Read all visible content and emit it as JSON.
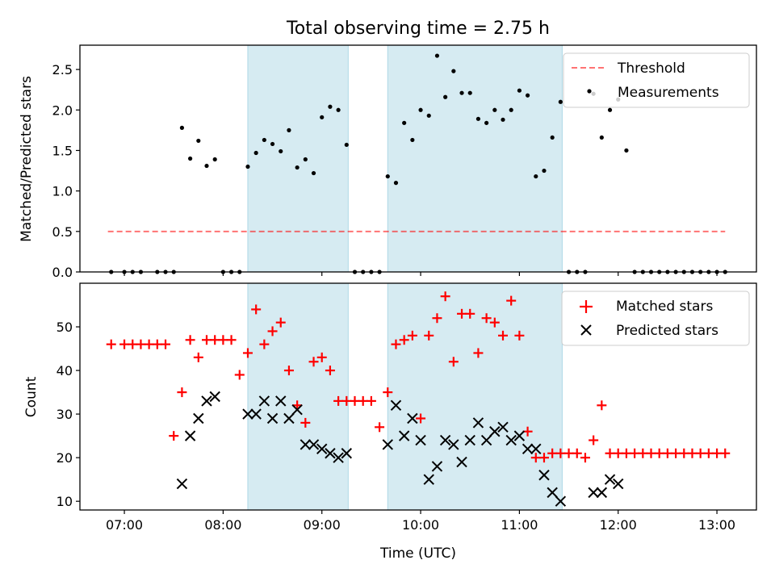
{
  "figure_title": "Total observing time = 2.75 h",
  "xlabel": "Time (UTC)",
  "x_ticks": [
    {
      "t": 7.0,
      "label": "07:00"
    },
    {
      "t": 8.0,
      "label": "08:00"
    },
    {
      "t": 9.0,
      "label": "09:00"
    },
    {
      "t": 10.0,
      "label": "10:00"
    },
    {
      "t": 11.0,
      "label": "11:00"
    },
    {
      "t": 12.0,
      "label": "12:00"
    },
    {
      "t": 13.0,
      "label": "13:00"
    }
  ],
  "shaded_intervals": [
    [
      "08:15",
      "09:16"
    ],
    [
      "09:40",
      "11:26"
    ]
  ],
  "colors": {
    "shade": "#add8e6",
    "threshold": "#ff0000",
    "measurements": "#000000",
    "matched": "#ff0000",
    "predicted": "#000000"
  },
  "chart_data": [
    {
      "type": "scatter",
      "ylabel": "Matched/Predicted stars",
      "ylim": [
        0,
        2.8
      ],
      "xlim": [
        "06:33",
        "13:24"
      ],
      "y_ticks": [
        "0.0",
        "0.5",
        "1.0",
        "1.5",
        "2.0",
        "2.5"
      ],
      "legend": {
        "placement": "top-right",
        "entries": [
          "Threshold",
          "Measurements"
        ]
      },
      "threshold": {
        "name": "Threshold",
        "y": 0.5,
        "x_range": [
          "06:50",
          "13:05"
        ],
        "style": "dashed"
      },
      "series": [
        {
          "name": "Measurements",
          "x": [
            "06:52",
            "07:00",
            "07:05",
            "07:10",
            "07:20",
            "07:25",
            "07:30",
            "07:35",
            "07:40",
            "07:45",
            "07:50",
            "07:55",
            "08:00",
            "08:05",
            "08:10",
            "08:15",
            "08:20",
            "08:25",
            "08:30",
            "08:35",
            "08:40",
            "08:45",
            "08:50",
            "08:55",
            "09:00",
            "09:05",
            "09:10",
            "09:15",
            "09:20",
            "09:25",
            "09:30",
            "09:35",
            "09:40",
            "09:45",
            "09:50",
            "09:55",
            "10:00",
            "10:05",
            "10:10",
            "10:15",
            "10:20",
            "10:25",
            "10:30",
            "10:35",
            "10:40",
            "10:45",
            "10:50",
            "10:55",
            "11:00",
            "11:05",
            "11:10",
            "11:15",
            "11:20",
            "11:25",
            "11:30",
            "11:35",
            "11:40",
            "11:45",
            "11:50",
            "11:55",
            "12:00",
            "12:05",
            "12:10",
            "12:15",
            "12:20",
            "12:25",
            "12:30",
            "12:35",
            "12:40",
            "12:45",
            "12:50",
            "12:55",
            "13:00",
            "13:05"
          ],
          "y": [
            0,
            0,
            0,
            0,
            0,
            0,
            0,
            1.78,
            1.4,
            1.62,
            1.31,
            1.39,
            0,
            0,
            0,
            1.3,
            1.47,
            1.63,
            1.58,
            1.49,
            1.75,
            1.29,
            1.39,
            1.22,
            1.91,
            2.04,
            2.0,
            1.57,
            0,
            0,
            0,
            0,
            1.18,
            1.1,
            1.84,
            1.63,
            2.0,
            1.93,
            2.67,
            2.16,
            2.48,
            2.21,
            2.21,
            1.89,
            1.84,
            2.0,
            1.88,
            2.0,
            2.24,
            2.18,
            1.18,
            1.25,
            1.66,
            2.1,
            0,
            0,
            0,
            2.2,
            1.66,
            2.0,
            2.13,
            1.5,
            0,
            0,
            0,
            0,
            0,
            0,
            0,
            0,
            0,
            0,
            0,
            0
          ]
        }
      ]
    },
    {
      "type": "scatter",
      "ylabel": "Count",
      "ylim": [
        8,
        60
      ],
      "xlim": [
        "06:33",
        "13:24"
      ],
      "y_ticks": [
        "10",
        "20",
        "30",
        "40",
        "50"
      ],
      "legend": {
        "placement": "top-right",
        "entries": [
          "Matched stars",
          "Predicted stars"
        ]
      },
      "series": [
        {
          "name": "Matched stars",
          "marker": "+",
          "x": [
            "06:52",
            "07:00",
            "07:05",
            "07:10",
            "07:15",
            "07:20",
            "07:25",
            "07:30",
            "07:35",
            "07:40",
            "07:45",
            "07:50",
            "07:55",
            "08:00",
            "08:05",
            "08:10",
            "08:15",
            "08:20",
            "08:25",
            "08:30",
            "08:35",
            "08:40",
            "08:45",
            "08:50",
            "08:55",
            "09:00",
            "09:05",
            "09:10",
            "09:15",
            "09:20",
            "09:25",
            "09:30",
            "09:35",
            "09:40",
            "09:45",
            "09:50",
            "09:55",
            "10:00",
            "10:05",
            "10:10",
            "10:15",
            "10:20",
            "10:25",
            "10:30",
            "10:35",
            "10:40",
            "10:45",
            "10:50",
            "10:55",
            "11:00",
            "11:05",
            "11:10",
            "11:15",
            "11:20",
            "11:25",
            "11:30",
            "11:35",
            "11:40",
            "11:45",
            "11:50",
            "11:55",
            "12:00",
            "12:05",
            "12:10",
            "12:15",
            "12:20",
            "12:25",
            "12:30",
            "12:35",
            "12:40",
            "12:45",
            "12:50",
            "12:55",
            "13:00",
            "13:05"
          ],
          "y": [
            46,
            46,
            46,
            46,
            46,
            46,
            46,
            25,
            35,
            47,
            43,
            47,
            47,
            47,
            47,
            39,
            44,
            54,
            46,
            49,
            51,
            40,
            32,
            28,
            42,
            43,
            40,
            33,
            33,
            33,
            33,
            33,
            27,
            35,
            46,
            47,
            48,
            29,
            48,
            52,
            57,
            42,
            53,
            53,
            44,
            52,
            51,
            48,
            56,
            48,
            26,
            20,
            20,
            21,
            21,
            21,
            21,
            20,
            24,
            32,
            21,
            21,
            21,
            21,
            21,
            21,
            21,
            21,
            21,
            21,
            21,
            21,
            21,
            21,
            21
          ]
        },
        {
          "name": "Predicted stars",
          "marker": "x",
          "x": [
            "07:35",
            "07:40",
            "07:45",
            "07:50",
            "07:55",
            "08:15",
            "08:20",
            "08:25",
            "08:30",
            "08:35",
            "08:40",
            "08:45",
            "08:50",
            "08:55",
            "09:00",
            "09:05",
            "09:10",
            "09:15",
            "09:40",
            "09:45",
            "09:50",
            "09:55",
            "10:00",
            "10:05",
            "10:10",
            "10:15",
            "10:20",
            "10:25",
            "10:30",
            "10:35",
            "10:40",
            "10:45",
            "10:50",
            "10:55",
            "11:00",
            "11:05",
            "11:10",
            "11:15",
            "11:20",
            "11:25",
            "11:45",
            "11:50",
            "11:55",
            "12:00"
          ],
          "y": [
            14,
            25,
            29,
            33,
            34,
            30,
            30,
            33,
            29,
            33,
            29,
            31,
            23,
            23,
            22,
            21,
            20,
            21,
            23,
            32,
            25,
            29,
            24,
            15,
            18,
            24,
            23,
            19,
            24,
            28,
            24,
            26,
            27,
            24,
            25,
            22,
            22,
            16,
            12,
            10,
            12,
            12,
            15,
            14
          ]
        }
      ]
    }
  ]
}
